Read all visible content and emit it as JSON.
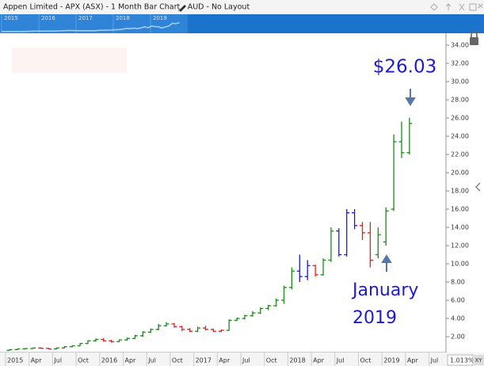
{
  "window_title": "Appen Limited - APX (ASX) - 1 Month Bar Chart - AUD - No Layout",
  "navigator_labels": [
    "2015",
    "2016",
    "2017",
    "2018",
    "2019"
  ],
  "zoom_label": "1.013%",
  "xy_label": "XY",
  "chart_data": {
    "type": "ohlc",
    "annotations": [
      "$26.03",
      "January",
      "2019"
    ],
    "categories": [
      "2015",
      null,
      null,
      "Apr",
      null,
      null,
      "Jul",
      null,
      null,
      "Oct",
      null,
      null,
      "2016",
      null,
      null,
      "Apr",
      null,
      null,
      "Jul",
      null,
      null,
      "Oct",
      null,
      null,
      "2017",
      null,
      null,
      "Apr",
      null,
      null,
      "Jul",
      null,
      null,
      "Oct",
      null,
      null,
      "2018",
      null,
      null,
      "Apr",
      null,
      null,
      "Jul",
      null,
      null,
      "Oct",
      null,
      null,
      "2019",
      null,
      null,
      "Apr",
      null,
      null,
      "Jul"
    ],
    "open": [
      0.5,
      0.58,
      0.66,
      0.7,
      0.76,
      0.72,
      0.66,
      0.76,
      0.9,
      1.0,
      1.25,
      1.55,
      1.7,
      1.55,
      1.45,
      1.65,
      1.8,
      2.1,
      2.5,
      2.8,
      3.2,
      3.4,
      3.1,
      2.8,
      2.6,
      2.95,
      2.8,
      2.6,
      2.7,
      3.8,
      4.0,
      4.3,
      4.6,
      5.1,
      5.4,
      6.0,
      7.4,
      9.2,
      8.6,
      9.8,
      8.8,
      10.4,
      13.6,
      11.0,
      15.6,
      14.2,
      13.4,
      11.0,
      12.4,
      16.0,
      23.4,
      22.2,
      null,
      null,
      null
    ],
    "high": [
      0.62,
      0.7,
      0.75,
      0.8,
      0.82,
      0.78,
      0.8,
      0.95,
      1.05,
      1.3,
      1.6,
      1.8,
      1.85,
      1.65,
      1.7,
      1.9,
      2.2,
      2.6,
      2.9,
      3.4,
      3.6,
      3.5,
      3.2,
      2.95,
      3.1,
      3.2,
      2.9,
      2.8,
      3.9,
      4.1,
      4.4,
      4.8,
      5.2,
      5.5,
      6.2,
      7.6,
      9.6,
      11.0,
      10.4,
      9.9,
      10.6,
      14.0,
      13.9,
      16.0,
      16.0,
      14.6,
      14.6,
      14.0,
      16.2,
      24.2,
      25.6,
      26.03,
      null,
      null,
      null
    ],
    "low": [
      0.45,
      0.55,
      0.6,
      0.65,
      0.68,
      0.62,
      0.62,
      0.72,
      0.85,
      0.95,
      1.2,
      1.45,
      1.45,
      1.35,
      1.4,
      1.55,
      1.75,
      2.0,
      2.4,
      2.7,
      3.1,
      3.0,
      2.6,
      2.5,
      2.5,
      2.7,
      2.5,
      2.5,
      2.65,
      3.7,
      3.9,
      4.2,
      4.5,
      4.9,
      5.3,
      5.6,
      7.2,
      8.0,
      8.2,
      8.6,
      8.7,
      10.2,
      10.8,
      10.8,
      13.8,
      12.6,
      9.6,
      10.6,
      12.0,
      15.8,
      21.6,
      22.0,
      null,
      null,
      null
    ],
    "close": [
      0.58,
      0.66,
      0.7,
      0.76,
      0.72,
      0.66,
      0.76,
      0.9,
      1.0,
      1.25,
      1.55,
      1.7,
      1.55,
      1.45,
      1.65,
      1.8,
      2.1,
      2.5,
      2.8,
      3.2,
      3.4,
      3.1,
      2.8,
      2.6,
      2.95,
      2.8,
      2.6,
      2.7,
      3.8,
      4.0,
      4.3,
      4.6,
      5.1,
      5.4,
      6.0,
      7.4,
      9.2,
      8.6,
      9.8,
      8.8,
      10.4,
      13.6,
      11.0,
      15.6,
      14.2,
      13.4,
      10.4,
      13.2,
      15.8,
      23.4,
      22.2,
      25.4,
      null,
      null,
      null
    ],
    "bar_colors": [
      "#1a8a1a",
      "#1a8a1a",
      "#1a8a1a",
      "#1a8a1a",
      "#e0201e",
      "#e0201e",
      "#1a8a1a",
      "#1a8a1a",
      "#1a8a1a",
      "#1a8a1a",
      "#1a8a1a",
      "#1a8a1a",
      "#e0201e",
      "#e0201e",
      "#1a8a1a",
      "#1a8a1a",
      "#1a8a1a",
      "#1a8a1a",
      "#1a8a1a",
      "#1a8a1a",
      "#1a8a1a",
      "#e0201e",
      "#e0201e",
      "#e0201e",
      "#1a8a1a",
      "#e0201e",
      "#e0201e",
      "#e0201e",
      "#1a8a1a",
      "#1a8a1a",
      "#1a8a1a",
      "#1a8a1a",
      "#1a8a1a",
      "#1a8a1a",
      "#1a8a1a",
      "#1a8a1a",
      "#1a8a1a",
      "#1a1ad8",
      "#1a1ad8",
      "#e0201e",
      "#1a8a1a",
      "#1a8a1a",
      "#1a1ad8",
      "#1a1ad8",
      "#1a1ad8",
      "#e0201e",
      "#e0201e",
      "#1a8a1a",
      "#1a8a1a",
      "#1a8a1a",
      "#1a8a1a",
      "#1a8a1a",
      null,
      null,
      null
    ],
    "ylim": [
      0,
      35.2
    ],
    "yticks": [
      {
        "value": 2,
        "label": "2.00"
      },
      {
        "value": 4,
        "label": "4.00"
      },
      {
        "value": 6,
        "label": "6.00"
      },
      {
        "value": 8,
        "label": "8.00"
      },
      {
        "value": 10,
        "label": "10.00"
      },
      {
        "value": 12,
        "label": "12.00"
      },
      {
        "value": 14,
        "label": "14.00"
      },
      {
        "value": 16,
        "label": "16.00"
      },
      {
        "value": 18,
        "label": "18.00"
      },
      {
        "value": 20,
        "label": "20.00"
      },
      {
        "value": 22,
        "label": "22.00"
      },
      {
        "value": 24,
        "label": "24.00"
      },
      {
        "value": 26,
        "label": "26.00"
      },
      {
        "value": 28,
        "label": "28.00"
      },
      {
        "value": 30,
        "label": "30.00"
      },
      {
        "value": 32,
        "label": "32.00"
      },
      {
        "value": 34,
        "label": "34.00"
      }
    ],
    "grid": false
  }
}
